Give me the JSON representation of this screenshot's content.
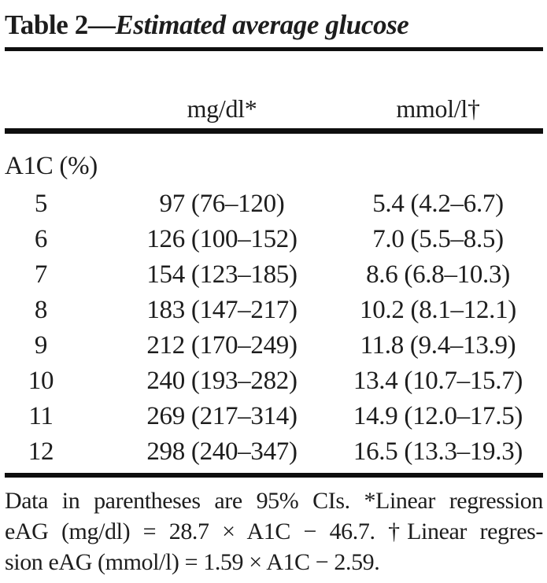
{
  "title": {
    "label": "Table 2",
    "dash": "—",
    "caption": "Estimated average glucose"
  },
  "columns": {
    "mgdl": "mg/dl*",
    "mmoll": "mmol/l†"
  },
  "group_label": "A1C (%)",
  "rows": [
    {
      "a1c": "5",
      "mgdl": "97 (76–120)",
      "mmoll": "5.4 (4.2–6.7)"
    },
    {
      "a1c": "6",
      "mgdl": "126 (100–152)",
      "mmoll": "7.0 (5.5–8.5)"
    },
    {
      "a1c": "7",
      "mgdl": "154 (123–185)",
      "mmoll": "8.6 (6.8–10.3)"
    },
    {
      "a1c": "8",
      "mgdl": "183 (147–217)",
      "mmoll": "10.2 (8.1–12.1)"
    },
    {
      "a1c": "9",
      "mgdl": "212 (170–249)",
      "mmoll": "11.8 (9.4–13.9)"
    },
    {
      "a1c": "10",
      "mgdl": "240 (193–282)",
      "mmoll": "13.4 (10.7–15.7)"
    },
    {
      "a1c": "11",
      "mgdl": "269 (217–314)",
      "mmoll": "14.9 (12.0–17.5)"
    },
    {
      "a1c": "12",
      "mgdl": "298 (240–347)",
      "mmoll": "16.5 (13.3–19.3)"
    }
  ],
  "footnote": {
    "line1": "Data in parentheses are 95% CIs. *Linear regression",
    "line2": "eAG (mg/dl) = 28.7 × A1C − 46.7. †Linear regres-",
    "line3": "sion eAG (mmol/l) = 1.59 × A1C − 2.59."
  }
}
